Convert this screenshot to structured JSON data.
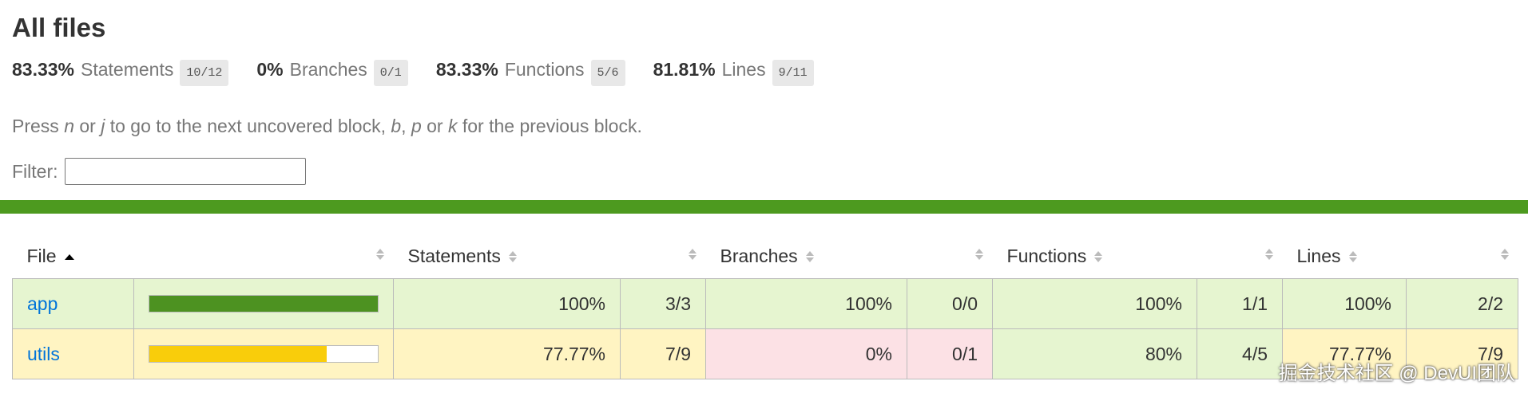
{
  "header": {
    "title": "All files",
    "summary": [
      {
        "percent": "83.33%",
        "name": "Statements",
        "fraction": "10/12"
      },
      {
        "percent": "0%",
        "name": "Branches",
        "fraction": "0/1"
      },
      {
        "percent": "83.33%",
        "name": "Functions",
        "fraction": "5/6"
      },
      {
        "percent": "81.81%",
        "name": "Lines",
        "fraction": "9/11"
      }
    ],
    "help": [
      "Press ",
      "n",
      " or ",
      "j",
      " to go to the next uncovered block, ",
      "b",
      ", ",
      "p",
      " or ",
      "k",
      " for the previous block."
    ],
    "filter_label": "Filter:"
  },
  "status_color": "#4d9a1f",
  "table": {
    "columns": [
      "File",
      "Statements",
      "Branches",
      "Functions",
      "Lines"
    ],
    "rows": [
      {
        "file": "app",
        "color": "#e6f5d0",
        "bar": {
          "value": 100,
          "color": "#4d9221"
        },
        "metrics": [
          {
            "value": 100,
            "label": "100%",
            "fraction": "3/3",
            "color": "#e6f5d0"
          },
          {
            "value": 100,
            "label": "100%",
            "fraction": "0/0",
            "color": "#e6f5d0"
          },
          {
            "value": 100,
            "label": "100%",
            "fraction": "1/1",
            "color": "#e6f5d0"
          },
          {
            "value": 100,
            "label": "100%",
            "fraction": "2/2",
            "color": "#e6f5d0"
          }
        ]
      },
      {
        "file": "utils",
        "color": "#fff4c2",
        "bar": {
          "value": 77.77,
          "color": "#f9cd0b"
        },
        "metrics": [
          {
            "value": 77.77,
            "label": "77.77%",
            "fraction": "7/9",
            "color": "#fff4c2"
          },
          {
            "value": 0,
            "label": "0%",
            "fraction": "0/1",
            "color": "#fce1e5"
          },
          {
            "value": 80,
            "label": "80%",
            "fraction": "4/5",
            "color": "#e6f5d0"
          },
          {
            "value": 77.77,
            "label": "77.77%",
            "fraction": "7/9",
            "color": "#fff4c2"
          }
        ]
      }
    ]
  },
  "watermark": "掘金技术社区 @ DevUI团队"
}
